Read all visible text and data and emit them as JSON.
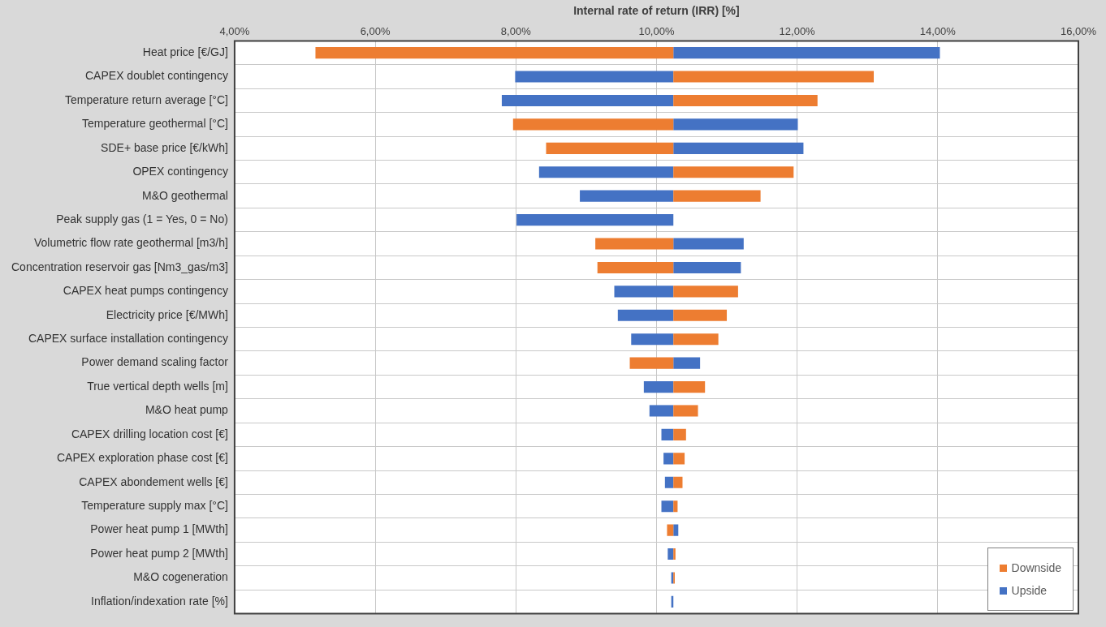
{
  "chart_data": {
    "type": "bar",
    "orientation": "horizontal",
    "xlabel": "Internal rate of return (IRR) [%]",
    "categories": [
      "Heat price [€/GJ]",
      "CAPEX doublet contingency",
      "Temperature return average [°C]",
      "Temperature geothermal [°C]",
      "SDE+ base price [€/kWh]",
      "OPEX contingency",
      "M&O geothermal",
      "Peak supply gas (1 = Yes, 0 = No)",
      "Volumetric flow rate geothermal [m3/h]",
      "Concentration reservoir gas [Nm3_gas/m3]",
      "CAPEX heat pumps contingency",
      "Electricity price [€/MWh]",
      "CAPEX surface installation contingency",
      "Power demand scaling factor",
      "True vertical depth wells [m]",
      "M&O heat pump",
      "CAPEX drilling location cost [€]",
      "CAPEX exploration phase cost [€]",
      "CAPEX abondement wells [€]",
      "Temperature supply max [°C]",
      "Power heat pump 1 [MWth]",
      "Power heat pump 2 [MWth]",
      "M&O cogeneration",
      "Inflation/indexation rate [%]"
    ],
    "series": [
      {
        "name": "Downside",
        "color": "#ed7d31",
        "base": [
          10.24,
          10.24,
          10.24,
          10.24,
          10.24,
          10.24,
          10.24,
          null,
          10.24,
          10.24,
          10.24,
          10.24,
          10.24,
          10.24,
          10.24,
          10.24,
          10.24,
          10.24,
          10.24,
          10.24,
          10.24,
          10.24,
          10.24,
          null
        ],
        "values": [
          -5.09,
          2.85,
          2.05,
          -2.28,
          -1.81,
          1.71,
          1.24,
          null,
          -1.11,
          -1.08,
          0.92,
          0.76,
          0.64,
          -0.62,
          0.45,
          0.35,
          0.18,
          0.16,
          0.13,
          0.06,
          -0.09,
          0.03,
          0.02,
          null
        ]
      },
      {
        "name": "Upside",
        "color": "#4472c4",
        "base": [
          10.24,
          10.24,
          10.24,
          10.24,
          10.24,
          10.24,
          10.24,
          10.24,
          10.24,
          10.24,
          10.24,
          10.24,
          10.24,
          10.24,
          10.24,
          10.24,
          10.24,
          10.24,
          10.24,
          10.24,
          10.24,
          10.24,
          10.24,
          10.24
        ],
        "values": [
          3.79,
          -2.25,
          -2.44,
          1.77,
          1.85,
          -1.91,
          -1.33,
          -2.23,
          1.0,
          0.96,
          -0.84,
          -0.79,
          -0.6,
          0.38,
          -0.42,
          -0.34,
          -0.17,
          -0.14,
          -0.12,
          -0.17,
          0.07,
          -0.08,
          -0.03,
          -0.03
        ]
      }
    ],
    "xlim": [
      4,
      16
    ],
    "xticks": [
      {
        "value": 4,
        "label": "4,00%"
      },
      {
        "value": 6,
        "label": "6,00%"
      },
      {
        "value": 8,
        "label": "8,00%"
      },
      {
        "value": 10,
        "label": "10,00%"
      },
      {
        "value": 12,
        "label": "12,00%"
      },
      {
        "value": 14,
        "label": "14,00%"
      },
      {
        "value": 16,
        "label": "16,00%"
      }
    ],
    "grid": true,
    "legend": "bottom right"
  }
}
